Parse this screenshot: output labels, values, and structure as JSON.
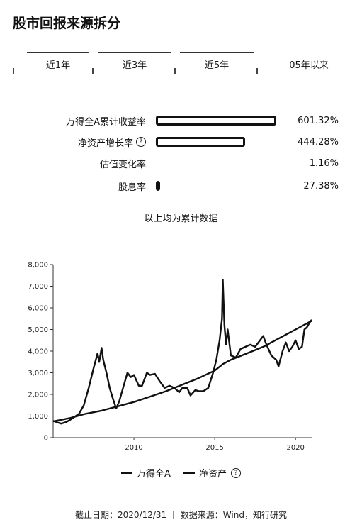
{
  "title": "股市回报来源拆分",
  "tabs": [
    {
      "label": "近1年"
    },
    {
      "label": "近3年"
    },
    {
      "label": "近5年"
    },
    {
      "label": "05年以来"
    }
  ],
  "metrics": [
    {
      "label": "万得全A累计收益率",
      "value": "601.32%",
      "fill": 1.0,
      "help": false
    },
    {
      "label": "净资产增长率",
      "value": "444.28%",
      "fill": 0.74,
      "help": true
    },
    {
      "label": "估值变化率",
      "value": "1.16%",
      "fill": 0.0,
      "help": false
    },
    {
      "label": "股息率",
      "value": "27.38%",
      "fill": 0.03,
      "help": false
    }
  ],
  "help_glyph": "?",
  "note": "以上均为累计数据",
  "legend": {
    "series1": "万得全A",
    "series2": "净资产"
  },
  "footer": "截止日期：2020/12/31 丨 数据来源：Wind，知行研究",
  "chart_data": {
    "type": "line",
    "x_ticks": [
      "2010",
      "2015",
      "2020"
    ],
    "y_ticks": [
      "0",
      "1,000",
      "2,000",
      "3,000",
      "4,000",
      "5,000",
      "6,000",
      "7,000",
      "8,000"
    ],
    "ylim": [
      0,
      8000
    ],
    "xlim": [
      2005.0,
      2021.0
    ],
    "grid": false,
    "legend_position": "bottom",
    "series": [
      {
        "name": "万得全A",
        "points": [
          [
            2005.0,
            780
          ],
          [
            2005.3,
            700
          ],
          [
            2005.5,
            650
          ],
          [
            2005.8,
            720
          ],
          [
            2006.0,
            800
          ],
          [
            2006.3,
            950
          ],
          [
            2006.6,
            1100
          ],
          [
            2006.9,
            1500
          ],
          [
            2007.2,
            2300
          ],
          [
            2007.5,
            3200
          ],
          [
            2007.75,
            3900
          ],
          [
            2007.85,
            3500
          ],
          [
            2008.0,
            4150
          ],
          [
            2008.1,
            3600
          ],
          [
            2008.3,
            3000
          ],
          [
            2008.5,
            2300
          ],
          [
            2008.7,
            1800
          ],
          [
            2008.9,
            1350
          ],
          [
            2009.1,
            1700
          ],
          [
            2009.4,
            2500
          ],
          [
            2009.6,
            3000
          ],
          [
            2009.8,
            2800
          ],
          [
            2010.0,
            2900
          ],
          [
            2010.3,
            2400
          ],
          [
            2010.5,
            2400
          ],
          [
            2010.8,
            3000
          ],
          [
            2011.0,
            2900
          ],
          [
            2011.3,
            2950
          ],
          [
            2011.6,
            2600
          ],
          [
            2011.9,
            2300
          ],
          [
            2012.2,
            2400
          ],
          [
            2012.5,
            2300
          ],
          [
            2012.8,
            2100
          ],
          [
            2013.0,
            2300
          ],
          [
            2013.3,
            2300
          ],
          [
            2013.5,
            1950
          ],
          [
            2013.8,
            2200
          ],
          [
            2014.0,
            2150
          ],
          [
            2014.3,
            2150
          ],
          [
            2014.6,
            2300
          ],
          [
            2014.9,
            3000
          ],
          [
            2015.1,
            3600
          ],
          [
            2015.3,
            4500
          ],
          [
            2015.45,
            5500
          ],
          [
            2015.5,
            7300
          ],
          [
            2015.6,
            5200
          ],
          [
            2015.7,
            4300
          ],
          [
            2015.8,
            5000
          ],
          [
            2016.0,
            3800
          ],
          [
            2016.3,
            3700
          ],
          [
            2016.6,
            4100
          ],
          [
            2016.9,
            4200
          ],
          [
            2017.2,
            4300
          ],
          [
            2017.5,
            4200
          ],
          [
            2017.8,
            4500
          ],
          [
            2018.0,
            4700
          ],
          [
            2018.2,
            4300
          ],
          [
            2018.5,
            3800
          ],
          [
            2018.8,
            3600
          ],
          [
            2018.95,
            3300
          ],
          [
            2019.2,
            4000
          ],
          [
            2019.4,
            4400
          ],
          [
            2019.6,
            4000
          ],
          [
            2019.8,
            4200
          ],
          [
            2020.0,
            4500
          ],
          [
            2020.2,
            4100
          ],
          [
            2020.4,
            4200
          ],
          [
            2020.55,
            5000
          ],
          [
            2020.7,
            5100
          ],
          [
            2020.85,
            5300
          ],
          [
            2021.0,
            5450
          ]
        ]
      },
      {
        "name": "净资产",
        "points": [
          [
            2005.0,
            750
          ],
          [
            2006.0,
            900
          ],
          [
            2007.0,
            1100
          ],
          [
            2008.0,
            1250
          ],
          [
            2009.0,
            1450
          ],
          [
            2010.0,
            1650
          ],
          [
            2011.0,
            1900
          ],
          [
            2012.0,
            2150
          ],
          [
            2013.0,
            2450
          ],
          [
            2014.0,
            2750
          ],
          [
            2015.0,
            3100
          ],
          [
            2015.5,
            3400
          ],
          [
            2016.0,
            3600
          ],
          [
            2017.0,
            3900
          ],
          [
            2018.0,
            4200
          ],
          [
            2019.0,
            4600
          ],
          [
            2020.0,
            5000
          ],
          [
            2021.0,
            5400
          ]
        ]
      }
    ]
  }
}
